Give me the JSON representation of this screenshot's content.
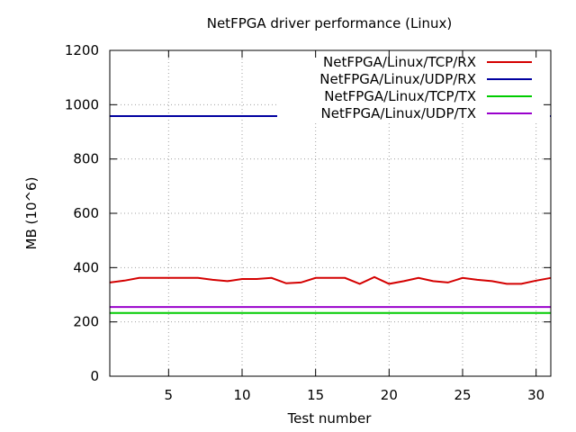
{
  "chart_data": {
    "type": "line",
    "title": "NetFPGA driver performance (Linux)",
    "xlabel": "Test number",
    "ylabel": "MB (10^6)",
    "xlim": [
      1,
      31
    ],
    "ylim": [
      0,
      1200
    ],
    "xticks": [
      5,
      10,
      15,
      20,
      25,
      30
    ],
    "yticks": [
      0,
      200,
      400,
      600,
      800,
      1000,
      1200
    ],
    "grid": true,
    "legend_position": "top-right",
    "x": [
      1,
      2,
      3,
      4,
      5,
      6,
      7,
      8,
      9,
      10,
      11,
      12,
      13,
      14,
      15,
      16,
      17,
      18,
      19,
      20,
      21,
      22,
      23,
      24,
      25,
      26,
      27,
      28,
      29,
      30,
      31
    ],
    "series": [
      {
        "name": "NetFPGA/Linux/TCP/RX",
        "color": "#d40000",
        "values": [
          345,
          352,
          362,
          362,
          362,
          362,
          362,
          355,
          350,
          358,
          358,
          362,
          342,
          345,
          362,
          362,
          362,
          340,
          365,
          340,
          350,
          362,
          350,
          345,
          362,
          355,
          350,
          340,
          340,
          352,
          362
        ]
      },
      {
        "name": "NetFPGA/Linux/UDP/RX",
        "color": "#0000a0",
        "values": [
          958,
          958,
          958,
          958,
          958,
          958,
          958,
          958,
          958,
          958,
          958,
          958,
          958,
          958,
          958,
          958,
          958,
          958,
          958,
          958,
          958,
          958,
          958,
          958,
          958,
          958,
          958,
          958,
          958,
          958,
          958
        ]
      },
      {
        "name": "NetFPGA/Linux/TCP/TX",
        "color": "#00cc00",
        "values": [
          233,
          233,
          233,
          233,
          233,
          233,
          233,
          233,
          233,
          233,
          233,
          233,
          233,
          233,
          233,
          233,
          233,
          233,
          233,
          233,
          233,
          233,
          233,
          233,
          233,
          233,
          233,
          233,
          233,
          233,
          233
        ]
      },
      {
        "name": "NetFPGA/Linux/UDP/TX",
        "color": "#9900cc",
        "values": [
          255,
          255,
          255,
          255,
          255,
          255,
          255,
          255,
          255,
          255,
          255,
          255,
          255,
          255,
          255,
          255,
          255,
          255,
          255,
          255,
          255,
          255,
          255,
          255,
          255,
          255,
          255,
          255,
          255,
          255,
          255
        ]
      }
    ]
  }
}
